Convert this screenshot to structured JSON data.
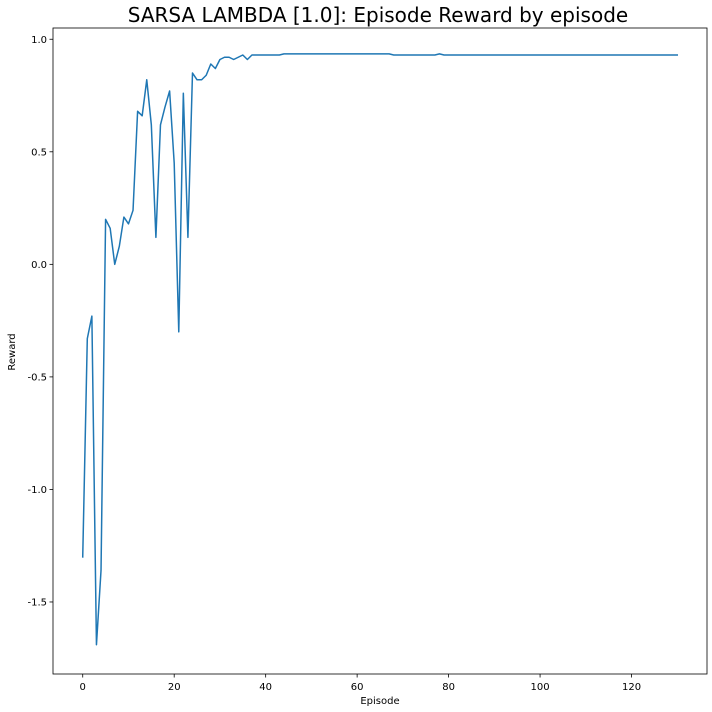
{
  "chart_data": {
    "type": "line",
    "title": "SARSA LAMBDA [1.0]: Episode Reward by episode",
    "xlabel": "Episode",
    "ylabel": "Reward",
    "xlim": [
      -6.5,
      136.5
    ],
    "ylim": [
      -1.82,
      1.05
    ],
    "xticks": [
      0,
      20,
      40,
      60,
      80,
      100,
      120
    ],
    "yticks": [
      -1.5,
      -1.0,
      -0.5,
      0.0,
      0.5,
      1.0
    ],
    "xtick_labels": [
      "0",
      "20",
      "40",
      "60",
      "80",
      "100",
      "120"
    ],
    "ytick_labels": [
      "-1.5",
      "-1.0",
      "-0.5",
      "0.0",
      "0.5",
      "1.0"
    ],
    "grid": false,
    "line_color": "#1f77b4",
    "series": [
      {
        "x": [
          0,
          1,
          2,
          3,
          4,
          5,
          6,
          7,
          8,
          9,
          10,
          11,
          12,
          13,
          14,
          15,
          16,
          17,
          18,
          19,
          20,
          21,
          22,
          23,
          24,
          25,
          26,
          27,
          28,
          29,
          30,
          31,
          32,
          33,
          34,
          35,
          36,
          37,
          38,
          39,
          40,
          41,
          42,
          43,
          44,
          45,
          46,
          47,
          48,
          49,
          50,
          51,
          52,
          53,
          54,
          55,
          56,
          57,
          58,
          59,
          60,
          61,
          62,
          63,
          64,
          65,
          66,
          67,
          68,
          69,
          70,
          71,
          72,
          73,
          74,
          75,
          76,
          77,
          78,
          79,
          80,
          81,
          82,
          83,
          84,
          85,
          86,
          87,
          88,
          89,
          90,
          91,
          92,
          93,
          94,
          95,
          96,
          97,
          98,
          99,
          100,
          101,
          102,
          103,
          104,
          105,
          106,
          107,
          108,
          109,
          110,
          111,
          112,
          113,
          114,
          115,
          116,
          117,
          118,
          119,
          120,
          121,
          122,
          123,
          124,
          125,
          126,
          127,
          128,
          129,
          130
        ],
        "values": [
          -1.3,
          -0.33,
          -0.23,
          -1.69,
          -1.36,
          0.2,
          0.16,
          0.0,
          0.08,
          0.21,
          0.18,
          0.24,
          0.68,
          0.66,
          0.82,
          0.62,
          0.12,
          0.62,
          0.7,
          0.77,
          0.45,
          -0.3,
          0.76,
          0.12,
          0.85,
          0.82,
          0.82,
          0.84,
          0.89,
          0.87,
          0.91,
          0.92,
          0.92,
          0.91,
          0.92,
          0.93,
          0.91,
          0.93,
          0.93,
          0.93,
          0.93,
          0.93,
          0.93,
          0.93,
          0.935,
          0.935,
          0.935,
          0.935,
          0.935,
          0.935,
          0.935,
          0.935,
          0.935,
          0.935,
          0.935,
          0.935,
          0.935,
          0.935,
          0.935,
          0.935,
          0.935,
          0.935,
          0.935,
          0.935,
          0.935,
          0.935,
          0.935,
          0.935,
          0.93,
          0.93,
          0.93,
          0.93,
          0.93,
          0.93,
          0.93,
          0.93,
          0.93,
          0.93,
          0.935,
          0.93,
          0.93,
          0.93,
          0.93,
          0.93,
          0.93,
          0.93,
          0.93,
          0.93,
          0.93,
          0.93,
          0.93,
          0.93,
          0.93,
          0.93,
          0.93,
          0.93,
          0.93,
          0.93,
          0.93,
          0.93,
          0.93,
          0.93,
          0.93,
          0.93,
          0.93,
          0.93,
          0.93,
          0.93,
          0.93,
          0.93,
          0.93,
          0.93,
          0.93,
          0.93,
          0.93,
          0.93,
          0.93,
          0.93,
          0.93,
          0.93,
          0.93,
          0.93,
          0.93,
          0.93,
          0.93,
          0.93,
          0.93,
          0.93,
          0.93,
          0.93,
          0.93
        ]
      }
    ]
  }
}
